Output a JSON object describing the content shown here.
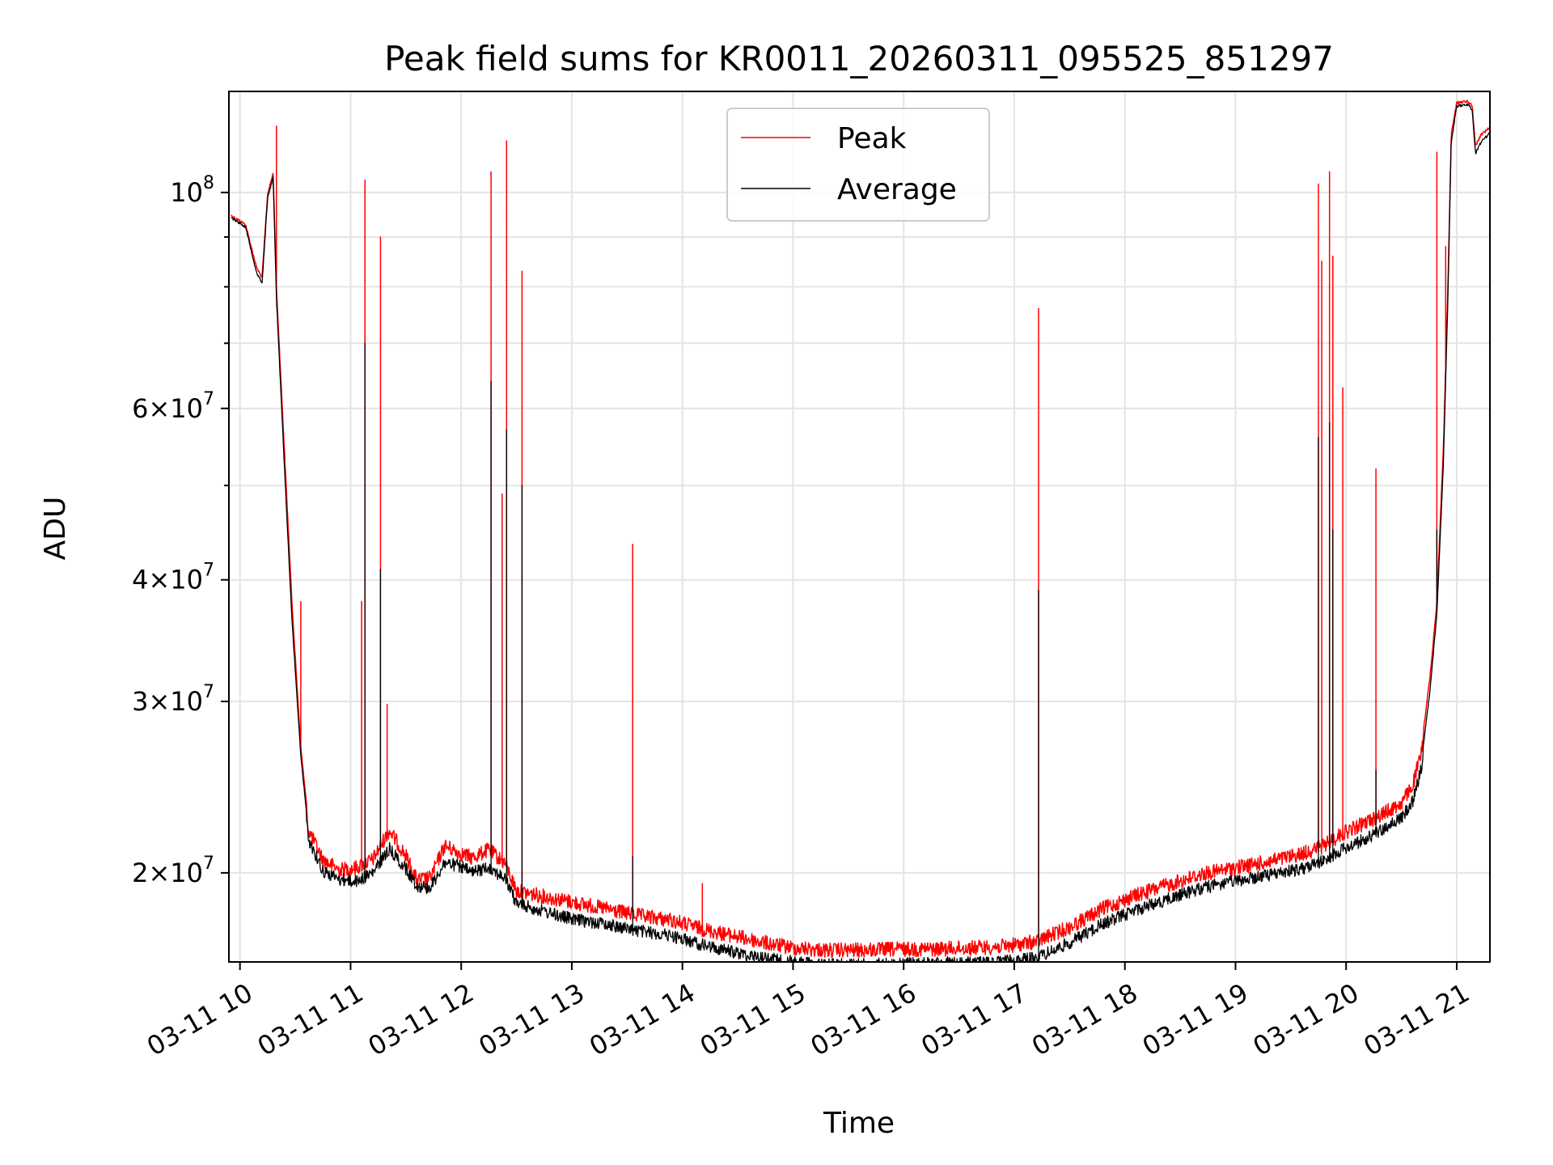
{
  "chart_data": {
    "type": "line",
    "title": "Peak field sums for KR0011_20260311_095525_851297",
    "xlabel": "Time",
    "ylabel": "ADU",
    "yscale": "log",
    "ylim": [
      16200000,
      127000000
    ],
    "xlim": [
      9.9,
      21.3
    ],
    "grid": true,
    "legend_position": "top-center",
    "x_ticks": [
      {
        "value": 10,
        "label": "03-11 10"
      },
      {
        "value": 11,
        "label": "03-11 11"
      },
      {
        "value": 12,
        "label": "03-11 12"
      },
      {
        "value": 13,
        "label": "03-11 13"
      },
      {
        "value": 14,
        "label": "03-11 14"
      },
      {
        "value": 15,
        "label": "03-11 15"
      },
      {
        "value": 16,
        "label": "03-11 16"
      },
      {
        "value": 17,
        "label": "03-11 17"
      },
      {
        "value": 18,
        "label": "03-11 18"
      },
      {
        "value": 19,
        "label": "03-11 19"
      },
      {
        "value": 20,
        "label": "03-11 20"
      },
      {
        "value": 21,
        "label": "03-11 21"
      }
    ],
    "y_ticks": [
      {
        "value": 20000000,
        "mantissa": "2",
        "exponent": "7"
      },
      {
        "value": 30000000,
        "mantissa": "3",
        "exponent": "7"
      },
      {
        "value": 40000000,
        "mantissa": "4",
        "exponent": "7"
      },
      {
        "value": 60000000,
        "mantissa": "6",
        "exponent": "7"
      },
      {
        "value": 100000000,
        "mantissa": "",
        "exponent": "8"
      }
    ],
    "y_minor_ticks": [
      50000000,
      70000000,
      80000000,
      90000000
    ],
    "series": [
      {
        "name": "Peak",
        "color": "#ff0000",
        "baseline": [
          [
            9.92,
            95000000
          ],
          [
            10.05,
            93000000
          ],
          [
            10.15,
            84000000
          ],
          [
            10.2,
            82000000
          ],
          [
            10.25,
            100000000
          ],
          [
            10.3,
            105000000
          ],
          [
            10.33,
            80000000
          ],
          [
            10.4,
            55000000
          ],
          [
            10.47,
            38000000
          ],
          [
            10.55,
            27000000
          ],
          [
            10.62,
            22500000
          ],
          [
            10.75,
            21000000
          ],
          [
            10.9,
            20500000
          ],
          [
            11.05,
            20600000
          ],
          [
            11.2,
            21000000
          ],
          [
            11.35,
            22500000
          ],
          [
            11.5,
            21200000
          ],
          [
            11.6,
            20000000
          ],
          [
            11.72,
            20100000
          ],
          [
            11.85,
            21700000
          ],
          [
            12.0,
            21300000
          ],
          [
            12.1,
            21100000
          ],
          [
            12.25,
            21500000
          ],
          [
            12.4,
            20800000
          ],
          [
            12.5,
            19500000
          ],
          [
            12.7,
            19300000
          ],
          [
            13.0,
            19000000
          ],
          [
            13.3,
            18700000
          ],
          [
            13.6,
            18400000
          ],
          [
            13.9,
            18200000
          ],
          [
            14.2,
            17800000
          ],
          [
            14.5,
            17500000
          ],
          [
            14.8,
            17200000
          ],
          [
            15.0,
            17050000
          ],
          [
            15.3,
            16950000
          ],
          [
            15.6,
            16950000
          ],
          [
            16.0,
            17000000
          ],
          [
            16.3,
            17000000
          ],
          [
            16.6,
            17050000
          ],
          [
            16.9,
            17100000
          ],
          [
            17.2,
            17300000
          ],
          [
            17.5,
            17900000
          ],
          [
            17.8,
            18700000
          ],
          [
            18.1,
            19300000
          ],
          [
            18.4,
            19800000
          ],
          [
            18.7,
            20300000
          ],
          [
            19.0,
            20600000
          ],
          [
            19.3,
            20900000
          ],
          [
            19.6,
            21300000
          ],
          [
            19.8,
            21700000
          ],
          [
            19.95,
            22300000
          ],
          [
            20.1,
            22700000
          ],
          [
            20.3,
            23300000
          ],
          [
            20.5,
            24000000
          ],
          [
            20.6,
            25000000
          ],
          [
            20.68,
            27000000
          ],
          [
            20.76,
            32000000
          ],
          [
            20.82,
            38000000
          ],
          [
            20.88,
            55000000
          ],
          [
            20.92,
            80000000
          ],
          [
            20.95,
            115000000
          ],
          [
            21.0,
            124000000
          ],
          [
            21.1,
            124500000
          ],
          [
            21.14,
            123000000
          ],
          [
            21.17,
            112000000
          ],
          [
            21.22,
            115000000
          ],
          [
            21.3,
            117000000
          ]
        ],
        "spikes": [
          [
            10.33,
            117000000
          ],
          [
            10.55,
            38000000
          ],
          [
            11.1,
            38000000
          ],
          [
            11.13,
            103000000
          ],
          [
            11.27,
            90000000
          ],
          [
            11.33,
            29800000
          ],
          [
            12.27,
            105000000
          ],
          [
            12.37,
            49000000
          ],
          [
            12.41,
            113000000
          ],
          [
            12.55,
            83000000
          ],
          [
            13.55,
            43500000
          ],
          [
            14.18,
            19500000
          ],
          [
            17.22,
            76000000
          ],
          [
            19.75,
            102000000
          ],
          [
            19.78,
            85000000
          ],
          [
            19.85,
            105000000
          ],
          [
            19.88,
            86000000
          ],
          [
            19.97,
            63000000
          ],
          [
            20.27,
            52000000
          ],
          [
            20.82,
            110000000
          ],
          [
            20.9,
            88000000
          ]
        ]
      },
      {
        "name": "Average",
        "color": "#000000",
        "baseline": [
          [
            9.92,
            94500000
          ],
          [
            10.05,
            92500000
          ],
          [
            10.15,
            83000000
          ],
          [
            10.2,
            81000000
          ],
          [
            10.25,
            99000000
          ],
          [
            10.3,
            104000000
          ],
          [
            10.33,
            78000000
          ],
          [
            10.4,
            53000000
          ],
          [
            10.47,
            36500000
          ],
          [
            10.55,
            26500000
          ],
          [
            10.62,
            22000000
          ],
          [
            10.75,
            20400000
          ],
          [
            10.9,
            20000000
          ],
          [
            11.05,
            19900000
          ],
          [
            11.2,
            20300000
          ],
          [
            11.35,
            21500000
          ],
          [
            11.5,
            20500000
          ],
          [
            11.6,
            19700000
          ],
          [
            11.72,
            19600000
          ],
          [
            11.85,
            20800000
          ],
          [
            12.0,
            20600000
          ],
          [
            12.1,
            20300000
          ],
          [
            12.25,
            20600000
          ],
          [
            12.4,
            20000000
          ],
          [
            12.5,
            18900000
          ],
          [
            12.7,
            18600000
          ],
          [
            13.0,
            18200000
          ],
          [
            13.3,
            18000000
          ],
          [
            13.6,
            17700000
          ],
          [
            13.9,
            17500000
          ],
          [
            14.2,
            17100000
          ],
          [
            14.5,
            16800000
          ],
          [
            14.8,
            16550000
          ],
          [
            15.0,
            16450000
          ],
          [
            15.3,
            16350000
          ],
          [
            15.6,
            16350000
          ],
          [
            16.0,
            16380000
          ],
          [
            16.3,
            16400000
          ],
          [
            16.6,
            16420000
          ],
          [
            16.9,
            16450000
          ],
          [
            17.2,
            16600000
          ],
          [
            17.5,
            17200000
          ],
          [
            17.8,
            18000000
          ],
          [
            18.1,
            18600000
          ],
          [
            18.4,
            19100000
          ],
          [
            18.7,
            19600000
          ],
          [
            19.0,
            19900000
          ],
          [
            19.3,
            20200000
          ],
          [
            19.6,
            20500000
          ],
          [
            19.8,
            20900000
          ],
          [
            19.95,
            21400000
          ],
          [
            20.1,
            21800000
          ],
          [
            20.3,
            22400000
          ],
          [
            20.5,
            23100000
          ],
          [
            20.6,
            24000000
          ],
          [
            20.68,
            26000000
          ],
          [
            20.76,
            31000000
          ],
          [
            20.82,
            37000000
          ],
          [
            20.88,
            53000000
          ],
          [
            20.92,
            78000000
          ],
          [
            20.95,
            113000000
          ],
          [
            21.0,
            123000000
          ],
          [
            21.1,
            123500000
          ],
          [
            21.14,
            122000000
          ],
          [
            21.17,
            110000000
          ],
          [
            21.22,
            113000000
          ],
          [
            21.3,
            115500000
          ]
        ],
        "spikes": [
          [
            11.13,
            70000000
          ],
          [
            11.27,
            41000000
          ],
          [
            12.27,
            64000000
          ],
          [
            12.41,
            57000000
          ],
          [
            12.55,
            50000000
          ],
          [
            13.55,
            20800000
          ],
          [
            17.22,
            39000000
          ],
          [
            19.75,
            56000000
          ],
          [
            19.85,
            58000000
          ],
          [
            19.88,
            45000000
          ],
          [
            20.27,
            25500000
          ],
          [
            20.82,
            45000000
          ]
        ]
      }
    ]
  }
}
